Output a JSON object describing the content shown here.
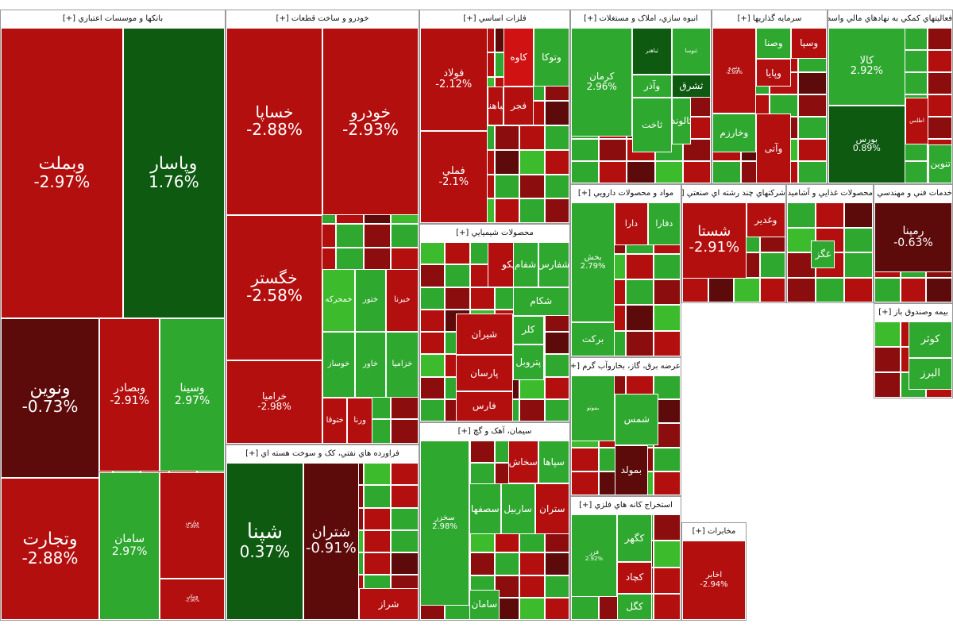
{
  "title": "",
  "colors": {
    "dark_red": "#5c0a0a",
    "red": "#b30f0f",
    "deep_red": "#8c0d0d",
    "bright_red": "#d11212",
    "green": "#2fa82f",
    "light_green": "#3cbc2c",
    "dark_green": "#0d5a10",
    "lime": "#4bd34b"
  },
  "chart_data": {
    "type": "heatmap",
    "sectors": [
      {
        "title": "بانکها و موسسات اعتباري [+]",
        "stocks": [
          {
            "symbol": "وبملت",
            "change": "-2.97%",
            "color": "red"
          },
          {
            "symbol": "وپاسار",
            "change": "1.76%",
            "color": "dark_green"
          },
          {
            "symbol": "ونوین",
            "change": "-0.73%",
            "color": "dark_red"
          },
          {
            "symbol": "وتجارت",
            "change": "-2.88%",
            "color": "red"
          },
          {
            "symbol": "وبصادر",
            "change": "-2.91%",
            "color": "red"
          },
          {
            "symbol": "وسینا",
            "change": "2.97%",
            "color": "green"
          },
          {
            "symbol": "سامان",
            "change": "2.97%",
            "color": "green"
          },
          {
            "symbol": "وپارس",
            "change": "-2.99%",
            "color": "red"
          },
          {
            "symbol": "ونیکی",
            "change": "-2.90%",
            "color": "red"
          }
        ]
      },
      {
        "title": "خودرو و ساخت قطعات [+]",
        "stocks": [
          {
            "symbol": "خساپا",
            "change": "-2.88%",
            "color": "red"
          },
          {
            "symbol": "خودرو",
            "change": "-2.93%",
            "color": "red"
          },
          {
            "symbol": "خگستر",
            "change": "-2.58%",
            "color": "red"
          },
          {
            "symbol": "خراميا",
            "change": "-2.98%",
            "color": "red"
          },
          {
            "symbol": "خمحرکه",
            "change": "",
            "color": "light_green"
          },
          {
            "symbol": "ختور",
            "change": "",
            "color": "green"
          },
          {
            "symbol": "خبرنا",
            "change": "",
            "color": "red"
          },
          {
            "symbol": "خوساز",
            "change": "",
            "color": "green"
          },
          {
            "symbol": "خاور",
            "change": "",
            "color": "green"
          },
          {
            "symbol": "خزامیا",
            "change": "",
            "color": "green"
          },
          {
            "symbol": "ختوقا",
            "change": "",
            "color": "red"
          },
          {
            "symbol": "ورنا",
            "change": "",
            "color": "red"
          }
        ]
      },
      {
        "title": "فلزات اساسي [+]",
        "stocks": [
          {
            "symbol": "فولاد",
            "change": "-2.12%",
            "color": "red"
          },
          {
            "symbol": "فملي",
            "change": "-2.1%",
            "color": "red"
          },
          {
            "symbol": "کاوه",
            "change": "",
            "color": "bright_red"
          },
          {
            "symbol": "وتوکا",
            "change": "",
            "color": "green"
          },
          {
            "symbol": "فجر",
            "change": "",
            "color": "red"
          },
          {
            "symbol": "فباهنر",
            "change": "",
            "color": "red"
          }
        ]
      },
      {
        "title": "انبوه سازي، املاک و مستغلات [+]",
        "stocks": [
          {
            "symbol": "کرمان",
            "change": "2.96%",
            "color": "green"
          },
          {
            "symbol": "ثباهنر",
            "change": "",
            "color": "dark_green"
          },
          {
            "symbol": "ثنوسا",
            "change": "",
            "color": "green"
          },
          {
            "symbol": "ثاخت",
            "change": "",
            "color": "green"
          },
          {
            "symbol": "ثالوند",
            "change": "",
            "color": "green"
          },
          {
            "symbol": "وآذر",
            "change": "",
            "color": "green"
          },
          {
            "symbol": "ثشرق",
            "change": "",
            "color": "dark_green"
          }
        ]
      },
      {
        "title": "سرمايه گذاريها [+]",
        "stocks": [
          {
            "symbol": "ونیرو",
            "change": "-2.99%",
            "color": "red"
          },
          {
            "symbol": "وصنا",
            "change": "",
            "color": "green"
          },
          {
            "symbol": "وسپا",
            "change": "",
            "color": "red"
          },
          {
            "symbol": "وخارزم",
            "change": "",
            "color": "green"
          },
          {
            "symbol": "وپایا",
            "change": "",
            "color": "red"
          },
          {
            "symbol": "وآتی",
            "change": "",
            "color": "red"
          }
        ]
      },
      {
        "title": "فعاليتهاي کمکي به نهادهاي مالي واسط [+]",
        "stocks": [
          {
            "symbol": "کالا",
            "change": "2.92%",
            "color": "green"
          },
          {
            "symbol": "بورس",
            "change": "0.89%",
            "color": "dark_green"
          },
          {
            "symbol": "تنوین",
            "change": "",
            "color": "green"
          },
          {
            "symbol": "اطلس",
            "change": "",
            "color": "red"
          }
        ]
      },
      {
        "title": "محصولات شيميايي [+]",
        "stocks": [
          {
            "symbol": "شفارس",
            "change": "",
            "color": "green"
          },
          {
            "symbol": "تاپیکو",
            "change": "",
            "color": "red"
          },
          {
            "symbol": "شکام",
            "change": "",
            "color": "green"
          },
          {
            "symbol": "شفام",
            "change": "",
            "color": "green"
          },
          {
            "symbol": "شیران",
            "change": "",
            "color": "red"
          },
          {
            "symbol": "پارسان",
            "change": "",
            "color": "red"
          },
          {
            "symbol": "پتروبل",
            "change": "",
            "color": "green"
          },
          {
            "symbol": "فارس",
            "change": "",
            "color": "red"
          },
          {
            "symbol": "کلر",
            "change": "",
            "color": "green"
          }
        ]
      },
      {
        "title": "مواد و محصولات دارويي [+]",
        "stocks": [
          {
            "symbol": "بخش",
            "change": "2.79%",
            "color": "green"
          },
          {
            "symbol": "برکت",
            "change": "",
            "color": "green"
          },
          {
            "symbol": "دارا",
            "change": "",
            "color": "red"
          },
          {
            "symbol": "دفارا",
            "change": "",
            "color": "green"
          }
        ]
      },
      {
        "title": "عرضه برق، گاز، بخاروآب گرم [+]",
        "stocks": [
          {
            "symbol": "بموتو",
            "change": "",
            "color": "green"
          },
          {
            "symbol": "شمس",
            "change": "",
            "color": "green"
          },
          {
            "symbol": "بمولد",
            "change": "",
            "color": "dark_red"
          }
        ]
      },
      {
        "title": "استخراج کانه هاي فلزي [+]",
        "stocks": [
          {
            "symbol": "فزر",
            "change": "2.92%",
            "color": "green"
          },
          {
            "symbol": "کگهر",
            "change": "",
            "color": "green"
          },
          {
            "symbol": "کچاد",
            "change": "",
            "color": "red"
          },
          {
            "symbol": "کگل",
            "change": "",
            "color": "green"
          }
        ]
      },
      {
        "title": "سيمان، آهک و گچ [+]",
        "stocks": [
          {
            "symbol": "سخزر",
            "change": "2.98%",
            "color": "green"
          },
          {
            "symbol": "سپاها",
            "change": "",
            "color": "green"
          },
          {
            "symbol": "سخاش",
            "change": "",
            "color": "red"
          },
          {
            "symbol": "سصفها",
            "change": "",
            "color": "green"
          },
          {
            "symbol": "ساربیل",
            "change": "",
            "color": "green"
          },
          {
            "symbol": "ستران",
            "change": "",
            "color": "red"
          },
          {
            "symbol": "سامان",
            "change": "",
            "color": "green"
          }
        ]
      },
      {
        "title": "فراورده هاي نفتي، کک و سوخت هسته اي [+]",
        "stocks": [
          {
            "symbol": "شپنا",
            "change": "0.37%",
            "color": "dark_green"
          },
          {
            "symbol": "شتران",
            "change": "-0.91%",
            "color": "dark_red"
          },
          {
            "symbol": "شراز",
            "change": "",
            "color": "red"
          }
        ]
      },
      {
        "title": "شرکتهاي چند رشته اي صنعتي [+]",
        "stocks": [
          {
            "symbol": "شستا",
            "change": "-2.91%",
            "color": "red"
          },
          {
            "symbol": "وغدیر",
            "change": "",
            "color": "red"
          }
        ]
      },
      {
        "title": "محصولات غذايي و آشاميدني [+]",
        "stocks": [
          {
            "symbol": "غگز",
            "change": "",
            "color": "green"
          }
        ]
      },
      {
        "title": "خدمات فني و مهندسي [+]",
        "stocks": [
          {
            "symbol": "رمپنا",
            "change": "-0.63%",
            "color": "dark_red"
          }
        ]
      },
      {
        "title": "مخابرات [+]",
        "stocks": [
          {
            "symbol": "اخابر",
            "change": "-2.94%",
            "color": "red"
          }
        ]
      },
      {
        "title": "بيمه وصندوق باز [+]",
        "stocks": [
          {
            "symbol": "کوثر",
            "change": "",
            "color": "green"
          },
          {
            "symbol": "البرز",
            "change": "",
            "color": "green"
          }
        ]
      }
    ]
  }
}
